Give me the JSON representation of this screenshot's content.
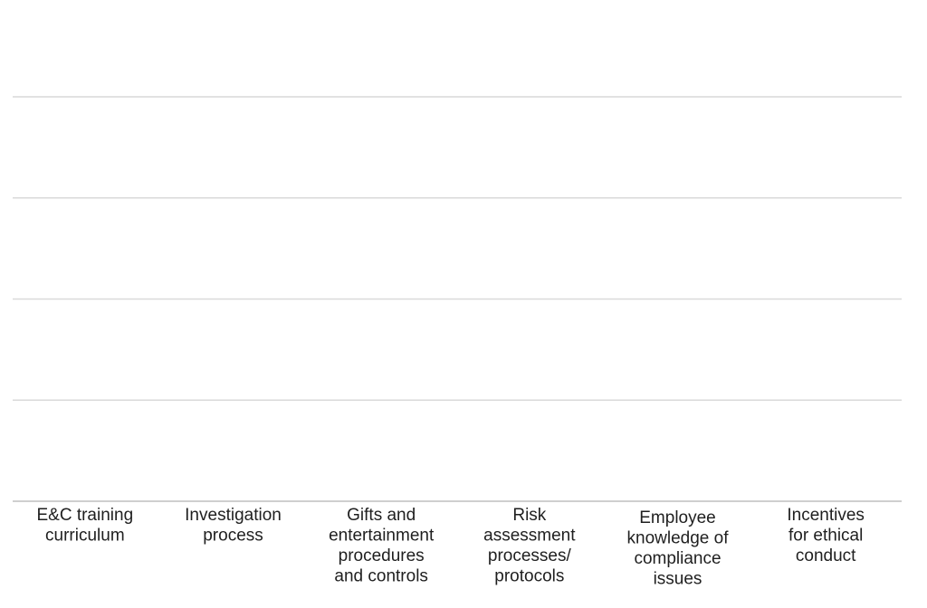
{
  "chart_data": {
    "type": "bar",
    "title": "",
    "xlabel": "",
    "ylabel": "",
    "grid": true,
    "categories": [
      [
        "E&C training",
        "curriculum"
      ],
      [
        "Investigation",
        "process"
      ],
      [
        "Gifts and",
        "entertainment",
        "procedures",
        "and controls"
      ],
      [
        "Risk",
        "assessment",
        "processes/",
        "protocols"
      ],
      [
        "Employee",
        "knowledge of",
        "compliance",
        "issues"
      ],
      [
        "Incentives",
        "for ethical",
        "conduct"
      ]
    ],
    "values": [
      null,
      null,
      null,
      null,
      null,
      null
    ],
    "gridline_count": 4,
    "colors": {
      "grid": "#d9d9d9",
      "axis": "#bfbfbf",
      "text": "#1f1f1f"
    }
  }
}
